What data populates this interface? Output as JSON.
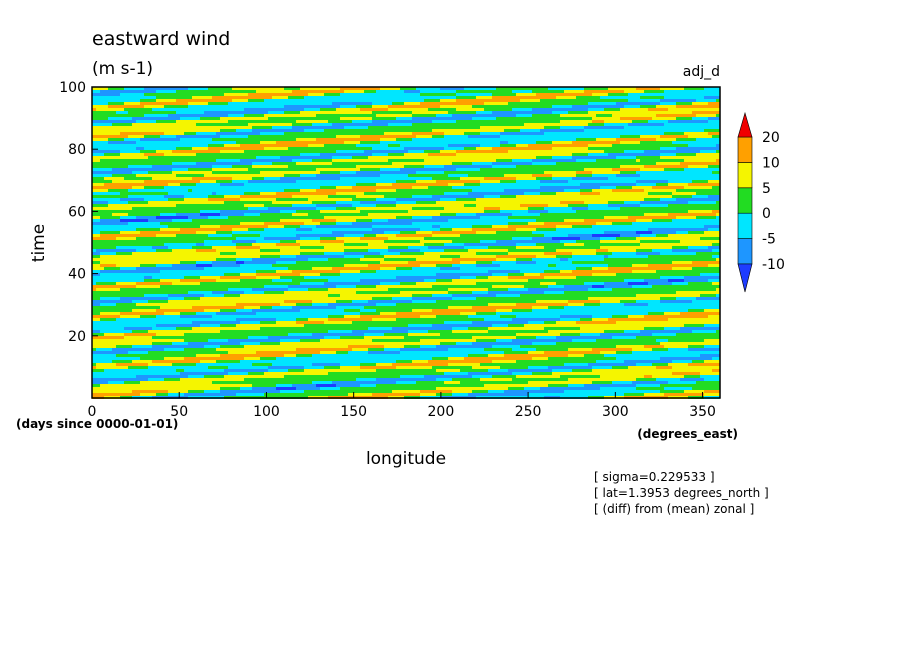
{
  "chart_data": {
    "type": "contour",
    "title": "eastward wind",
    "subtitle": "(m s-1)",
    "label": "adj_d",
    "x_label": "longitude",
    "y_label": "time",
    "x_units": "(degrees_east)",
    "y_units": "(days since 0000-01-01)",
    "xlim": [
      0,
      360
    ],
    "xticks": [
      0,
      50,
      100,
      150,
      200,
      250,
      300,
      350
    ],
    "ylim": [
      0,
      100
    ],
    "yticks": [
      20,
      40,
      60,
      80,
      100
    ],
    "colorbar": {
      "levels": [
        -10,
        -5,
        0,
        5,
        10,
        20
      ],
      "colors": [
        "#1e3cff",
        "#1e96ff",
        "#00e6ff",
        "#22dc22",
        "#f5f500",
        "#ffa000",
        "#f00000"
      ]
    },
    "annotations": [
      "[ sigma=0.229533 ]",
      "[ lat=1.3953 degrees_north ]",
      "[ (diff) from (mean) zonal ]"
    ]
  }
}
